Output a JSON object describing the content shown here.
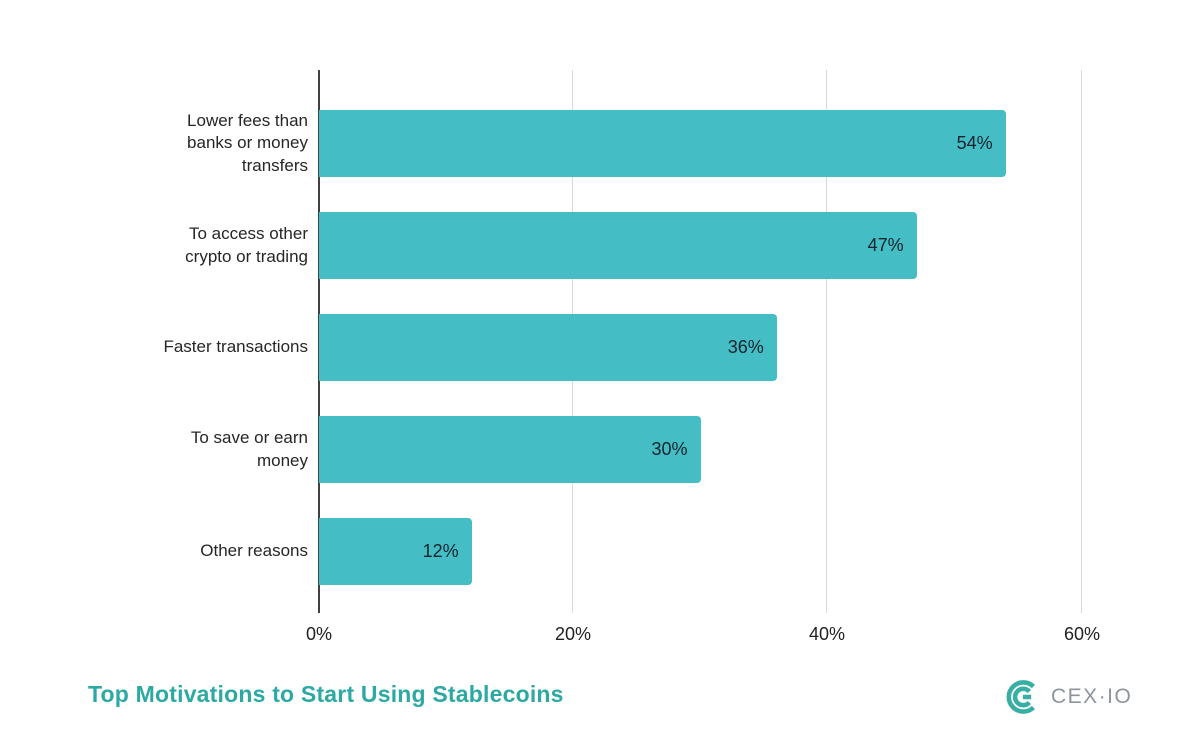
{
  "chart_data": {
    "type": "bar",
    "orientation": "horizontal",
    "title": "Top Motivations to Start Using Stablecoins",
    "categories": [
      "Lower fees than banks or money transfers",
      "To access other crypto or trading",
      "Faster transactions",
      "To save or earn money",
      "Other reasons"
    ],
    "values": [
      54,
      47,
      36,
      30,
      12
    ],
    "value_labels": [
      "54%",
      "47%",
      "36%",
      "30%",
      "12%"
    ],
    "x_ticks": [
      "0%",
      "20%",
      "40%",
      "60%"
    ],
    "xlim": [
      0,
      60
    ],
    "grid": true,
    "legend": false,
    "bar_color": "#45BDC5",
    "value_label_color": "#15232C",
    "gridline_color": "#d9d9d9",
    "axis_color": "#414141"
  },
  "footer": {
    "title": "Top Motivations to Start Using Stablecoins",
    "title_color": "#2CA9A3",
    "brand_label": "CEX·IO",
    "brand_text_color": "#8C959D",
    "brand_icon_color": "#38AFA4"
  }
}
